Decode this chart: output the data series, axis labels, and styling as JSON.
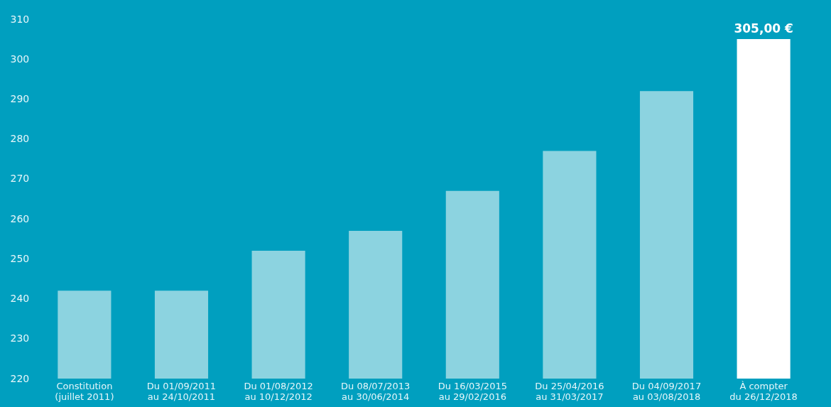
{
  "chart_data": {
    "type": "bar",
    "categories": [
      "Constitution\n(juillet 2011)",
      "Du 01/09/2011\nau 24/10/2011",
      "Du 01/08/2012\nau 10/12/2012",
      "Du 08/07/2013\nau 30/06/2014",
      "Du 16/03/2015\nau 29/02/2016",
      "Du 25/04/2016\nau 31/03/2017",
      "Du 04/09/2017\nau 03/08/2018",
      "À compter\ndu 26/12/2018"
    ],
    "values": [
      242,
      242,
      252,
      257,
      267,
      277,
      292,
      305
    ],
    "colors": [
      "#8cd3e0",
      "#8cd3e0",
      "#8cd3e0",
      "#8cd3e0",
      "#8cd3e0",
      "#8cd3e0",
      "#8cd3e0",
      "#ffffff"
    ],
    "value_labels": [
      null,
      null,
      null,
      null,
      null,
      null,
      null,
      "305,00 €"
    ],
    "ylim": [
      220,
      310
    ],
    "yticks": [
      220,
      230,
      240,
      250,
      260,
      270,
      280,
      290,
      300,
      310
    ],
    "grid": false
  }
}
